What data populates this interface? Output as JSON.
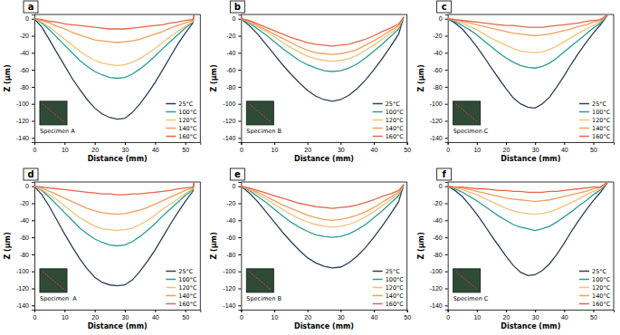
{
  "chart_data": [
    {
      "type": "line",
      "title": "a",
      "annotation": "Specimen A",
      "x_label": "Distance (mm)",
      "y_label": "Z (μm)",
      "xlim": [
        0,
        55
      ],
      "ylim": [
        -145,
        5
      ],
      "xticks": [
        0,
        10,
        20,
        30,
        40,
        50
      ],
      "yticks": [
        0,
        -20,
        -40,
        -60,
        -80,
        -100,
        -120,
        -140
      ],
      "legend": "lower right",
      "x": [
        0,
        2.5,
        5,
        7.5,
        10,
        12.5,
        15,
        17.5,
        20,
        22.5,
        25,
        27.5,
        30,
        32.5,
        35,
        37.5,
        40,
        42.5,
        45,
        47.5,
        50,
        52.5,
        53
      ],
      "series": [
        {
          "name": "25°C",
          "color": "#2d3e57",
          "values": [
            0,
            -10,
            -25,
            -40,
            -55,
            -70,
            -83,
            -95,
            -105,
            -112,
            -116,
            -118,
            -117,
            -110,
            -100,
            -88,
            -75,
            -60,
            -45,
            -30,
            -17,
            -5,
            5
          ]
        },
        {
          "name": "100°C",
          "color": "#2a9d8f",
          "values": [
            0,
            -5,
            -13,
            -22,
            -31,
            -40,
            -49,
            -56,
            -62,
            -66,
            -69,
            -70,
            -69,
            -65,
            -59,
            -52,
            -44,
            -35,
            -27,
            -19,
            -11,
            -4,
            5
          ]
        },
        {
          "name": "120°C",
          "color": "#f0c27b",
          "values": [
            0,
            -4,
            -10,
            -17,
            -24,
            -31,
            -38,
            -44,
            -49,
            -52,
            -54,
            -55,
            -54,
            -51,
            -47,
            -41,
            -35,
            -28,
            -21,
            -15,
            -9,
            -3,
            5
          ]
        },
        {
          "name": "140°C",
          "color": "#f29e5c",
          "values": [
            0,
            -2,
            -5,
            -9,
            -12,
            -16,
            -19,
            -22,
            -25,
            -26,
            -27,
            -28,
            -27,
            -26,
            -24,
            -21,
            -18,
            -15,
            -11,
            -8,
            -5,
            -2,
            5
          ]
        },
        {
          "name": "160°C",
          "color": "#e6654b",
          "values": [
            0,
            -1,
            -3,
            -4,
            -6,
            -7,
            -8,
            -9,
            -10,
            -11,
            -12,
            -12,
            -12,
            -11,
            -10,
            -9,
            -8,
            -7,
            -5,
            -4,
            -2,
            -1,
            5
          ]
        }
      ]
    },
    {
      "type": "line",
      "title": "b",
      "annotation": "Specimen B",
      "x_label": "Distance (mm)",
      "y_label": "Z (μm)",
      "xlim": [
        0,
        50
      ],
      "ylim": [
        -145,
        5
      ],
      "xticks": [
        0,
        10,
        20,
        30,
        40,
        50
      ],
      "yticks": [
        0,
        -20,
        -40,
        -60,
        -80,
        -100,
        -120,
        -140
      ],
      "legend": "lower right",
      "x": [
        0,
        2.5,
        5,
        7.5,
        10,
        12.5,
        15,
        17.5,
        20,
        22.5,
        25,
        27.5,
        30,
        32.5,
        35,
        37.5,
        40,
        42.5,
        45,
        47.5,
        49
      ],
      "series": [
        {
          "name": "25°C",
          "color": "#2d3e57",
          "values": [
            0,
            -8,
            -18,
            -30,
            -42,
            -54,
            -65,
            -75,
            -84,
            -91,
            -95,
            -97,
            -95,
            -90,
            -82,
            -72,
            -60,
            -47,
            -33,
            -18,
            2
          ]
        },
        {
          "name": "100°C",
          "color": "#2a9d8f",
          "values": [
            0,
            -5,
            -12,
            -19,
            -27,
            -35,
            -42,
            -49,
            -54,
            -58,
            -61,
            -62,
            -61,
            -58,
            -53,
            -46,
            -38,
            -30,
            -21,
            -12,
            2
          ]
        },
        {
          "name": "120°C",
          "color": "#f0c27b",
          "values": [
            0,
            -4,
            -9,
            -15,
            -21,
            -28,
            -34,
            -39,
            -44,
            -47,
            -49,
            -50,
            -49,
            -47,
            -43,
            -37,
            -31,
            -24,
            -17,
            -10,
            2
          ]
        },
        {
          "name": "140°C",
          "color": "#f29e5c",
          "values": [
            0,
            -3,
            -8,
            -13,
            -18,
            -23,
            -28,
            -33,
            -37,
            -40,
            -41,
            -42,
            -41,
            -39,
            -36,
            -31,
            -26,
            -20,
            -14,
            -8,
            2
          ]
        },
        {
          "name": "160°C",
          "color": "#e6654b",
          "values": [
            0,
            -2,
            -6,
            -10,
            -14,
            -18,
            -22,
            -25,
            -28,
            -30,
            -31,
            -32,
            -31,
            -30,
            -27,
            -24,
            -20,
            -15,
            -11,
            -6,
            2
          ]
        }
      ]
    },
    {
      "type": "line",
      "title": "c",
      "annotation": "Specimen C",
      "x_label": "Distance (mm)",
      "y_label": "Z (μm)",
      "xlim": [
        0,
        57
      ],
      "ylim": [
        -145,
        5
      ],
      "xticks": [
        0,
        10,
        20,
        30,
        40,
        50
      ],
      "yticks": [
        0,
        -20,
        -40,
        -60,
        -80,
        -100,
        -120,
        -140
      ],
      "legend": "lower right",
      "x": [
        0,
        2.5,
        5,
        7.5,
        10,
        12.5,
        15,
        17.5,
        20,
        22.5,
        25,
        27.5,
        30,
        32.5,
        35,
        37.5,
        40,
        42.5,
        45,
        47.5,
        50,
        52.5,
        55
      ],
      "series": [
        {
          "name": "25°C",
          "color": "#2d3e57",
          "values": [
            0,
            -5,
            -12,
            -22,
            -33,
            -45,
            -58,
            -70,
            -82,
            -93,
            -100,
            -104,
            -105,
            -100,
            -92,
            -80,
            -67,
            -53,
            -40,
            -28,
            -17,
            -7,
            5
          ]
        },
        {
          "name": "100°C",
          "color": "#2a9d8f",
          "values": [
            0,
            -3,
            -8,
            -13,
            -19,
            -26,
            -33,
            -40,
            -46,
            -51,
            -55,
            -57,
            -58,
            -56,
            -52,
            -46,
            -39,
            -32,
            -25,
            -18,
            -11,
            -5,
            5
          ]
        },
        {
          "name": "120°C",
          "color": "#f0c27b",
          "values": [
            0,
            -2,
            -5,
            -9,
            -13,
            -18,
            -23,
            -27,
            -31,
            -35,
            -38,
            -39,
            -40,
            -39,
            -36,
            -32,
            -27,
            -22,
            -17,
            -12,
            -8,
            -3,
            5
          ]
        },
        {
          "name": "140°C",
          "color": "#f29e5c",
          "values": [
            0,
            -1,
            -3,
            -5,
            -7,
            -9,
            -11,
            -13,
            -15,
            -17,
            -18,
            -19,
            -20,
            -19,
            -18,
            -16,
            -14,
            -12,
            -9,
            -7,
            -4,
            -2,
            5
          ]
        },
        {
          "name": "160°C",
          "color": "#e6654b",
          "values": [
            0,
            -1,
            -2,
            -3,
            -4,
            -5,
            -6,
            -7,
            -8,
            -8,
            -9,
            -10,
            -10,
            -10,
            -9,
            -8,
            -7,
            -6,
            -5,
            -3,
            -2,
            -1,
            5
          ]
        }
      ]
    },
    {
      "type": "line",
      "title": "d",
      "annotation": "Specimen  A",
      "x_label": "Distance (mm)",
      "y_label": "Z (μm)",
      "xlim": [
        0,
        55
      ],
      "ylim": [
        -145,
        5
      ],
      "xticks": [
        0,
        10,
        20,
        30,
        40,
        50
      ],
      "yticks": [
        0,
        -20,
        -40,
        -60,
        -80,
        -100,
        -120,
        -140
      ],
      "legend": "lower right",
      "x": [
        0,
        2.5,
        5,
        7.5,
        10,
        12.5,
        15,
        17.5,
        20,
        22.5,
        25,
        27.5,
        30,
        32.5,
        35,
        37.5,
        40,
        42.5,
        45,
        47.5,
        50,
        52.5,
        53
      ],
      "series": [
        {
          "name": "25°C",
          "color": "#2d3e57",
          "values": [
            0,
            -10,
            -24,
            -40,
            -56,
            -71,
            -85,
            -97,
            -107,
            -113,
            -116,
            -117,
            -116,
            -110,
            -100,
            -88,
            -75,
            -60,
            -45,
            -31,
            -18,
            -6,
            5
          ]
        },
        {
          "name": "100°C",
          "color": "#2a9d8f",
          "values": [
            0,
            -5,
            -13,
            -22,
            -31,
            -40,
            -49,
            -56,
            -62,
            -66,
            -69,
            -70,
            -69,
            -65,
            -59,
            -52,
            -44,
            -35,
            -27,
            -19,
            -11,
            -4,
            5
          ]
        },
        {
          "name": "120°C",
          "color": "#f0c27b",
          "values": [
            0,
            -4,
            -10,
            -16,
            -23,
            -30,
            -37,
            -42,
            -47,
            -50,
            -51,
            -52,
            -51,
            -49,
            -45,
            -40,
            -34,
            -27,
            -21,
            -15,
            -9,
            -3,
            5
          ]
        },
        {
          "name": "140°C",
          "color": "#f29e5c",
          "values": [
            0,
            -2,
            -6,
            -10,
            -14,
            -18,
            -22,
            -26,
            -29,
            -31,
            -32,
            -33,
            -32,
            -30,
            -28,
            -25,
            -21,
            -17,
            -13,
            -9,
            -5,
            -2,
            5
          ]
        },
        {
          "name": "160°C",
          "color": "#e6654b",
          "values": [
            0,
            -1,
            -2,
            -3,
            -4,
            -5,
            -6,
            -7,
            -8,
            -9,
            -9,
            -10,
            -10,
            -9,
            -9,
            -8,
            -7,
            -6,
            -5,
            -3,
            -2,
            -1,
            5
          ]
        }
      ]
    },
    {
      "type": "line",
      "title": "e",
      "annotation": "Specimen B",
      "x_label": "Distance (mm)",
      "y_label": "Z (μm)",
      "xlim": [
        0,
        50
      ],
      "ylim": [
        -145,
        5
      ],
      "xticks": [
        0,
        10,
        20,
        30,
        40,
        50
      ],
      "yticks": [
        0,
        -20,
        -40,
        -60,
        -80,
        -100,
        -120,
        -140
      ],
      "legend": "lower right",
      "x": [
        0,
        2.5,
        5,
        7.5,
        10,
        12.5,
        15,
        17.5,
        20,
        22.5,
        25,
        27.5,
        30,
        32.5,
        35,
        37.5,
        40,
        42.5,
        45,
        47.5,
        49
      ],
      "series": [
        {
          "name": "25°C",
          "color": "#2d3e57",
          "values": [
            0,
            -8,
            -18,
            -30,
            -42,
            -54,
            -65,
            -75,
            -84,
            -90,
            -94,
            -96,
            -95,
            -90,
            -82,
            -72,
            -60,
            -47,
            -33,
            -18,
            2
          ]
        },
        {
          "name": "100°C",
          "color": "#2a9d8f",
          "values": [
            0,
            -5,
            -12,
            -19,
            -27,
            -35,
            -42,
            -48,
            -53,
            -57,
            -59,
            -60,
            -59,
            -56,
            -51,
            -45,
            -37,
            -29,
            -20,
            -11,
            2
          ]
        },
        {
          "name": "120°C",
          "color": "#f0c27b",
          "values": [
            0,
            -4,
            -9,
            -15,
            -21,
            -27,
            -33,
            -38,
            -42,
            -45,
            -47,
            -48,
            -47,
            -45,
            -41,
            -36,
            -30,
            -23,
            -16,
            -9,
            2
          ]
        },
        {
          "name": "140°C",
          "color": "#f29e5c",
          "values": [
            0,
            -3,
            -7,
            -12,
            -17,
            -22,
            -26,
            -30,
            -34,
            -37,
            -39,
            -40,
            -39,
            -37,
            -34,
            -30,
            -25,
            -19,
            -13,
            -7,
            2
          ]
        },
        {
          "name": "160°C",
          "color": "#e6654b",
          "values": [
            0,
            -2,
            -5,
            -8,
            -11,
            -14,
            -17,
            -20,
            -22,
            -24,
            -25,
            -26,
            -25,
            -24,
            -22,
            -19,
            -16,
            -12,
            -9,
            -5,
            2
          ]
        }
      ]
    },
    {
      "type": "line",
      "title": "f",
      "annotation": "Specimen C",
      "x_label": "Distance (mm)",
      "y_label": "Z (μm)",
      "xlim": [
        0,
        57
      ],
      "ylim": [
        -145,
        5
      ],
      "xticks": [
        0,
        10,
        20,
        30,
        40,
        50
      ],
      "yticks": [
        0,
        -20,
        -40,
        -60,
        -80,
        -100,
        -120,
        -140
      ],
      "legend": "lower right",
      "x": [
        0,
        2.5,
        5,
        7.5,
        10,
        12.5,
        15,
        17.5,
        20,
        22.5,
        25,
        27.5,
        30,
        32.5,
        35,
        37.5,
        40,
        42.5,
        45,
        47.5,
        50,
        52.5,
        55
      ],
      "series": [
        {
          "name": "25°C",
          "color": "#2d3e57",
          "values": [
            0,
            -5,
            -12,
            -22,
            -33,
            -45,
            -58,
            -70,
            -82,
            -93,
            -101,
            -105,
            -104,
            -99,
            -91,
            -80,
            -67,
            -53,
            -40,
            -28,
            -17,
            -7,
            5
          ]
        },
        {
          "name": "100°C",
          "color": "#2a9d8f",
          "values": [
            0,
            -3,
            -7,
            -12,
            -17,
            -23,
            -29,
            -35,
            -40,
            -45,
            -48,
            -50,
            -52,
            -50,
            -47,
            -42,
            -36,
            -30,
            -23,
            -17,
            -10,
            -4,
            5
          ]
        },
        {
          "name": "120°C",
          "color": "#f0c27b",
          "values": [
            0,
            -2,
            -4,
            -7,
            -10,
            -14,
            -18,
            -22,
            -26,
            -29,
            -31,
            -32,
            -33,
            -32,
            -30,
            -27,
            -23,
            -19,
            -15,
            -10,
            -6,
            -3,
            5
          ]
        },
        {
          "name": "140°C",
          "color": "#f29e5c",
          "values": [
            0,
            -1,
            -2,
            -4,
            -6,
            -8,
            -10,
            -12,
            -14,
            -15,
            -16,
            -17,
            -18,
            -17,
            -16,
            -14,
            -12,
            -10,
            -8,
            -6,
            -3,
            -1,
            5
          ]
        },
        {
          "name": "160°C",
          "color": "#e6654b",
          "values": [
            0,
            -1,
            -1,
            -2,
            -3,
            -3,
            -4,
            -5,
            -5,
            -6,
            -6,
            -7,
            -7,
            -7,
            -6,
            -6,
            -5,
            -4,
            -3,
            -2,
            -1,
            -1,
            5
          ]
        }
      ]
    }
  ]
}
